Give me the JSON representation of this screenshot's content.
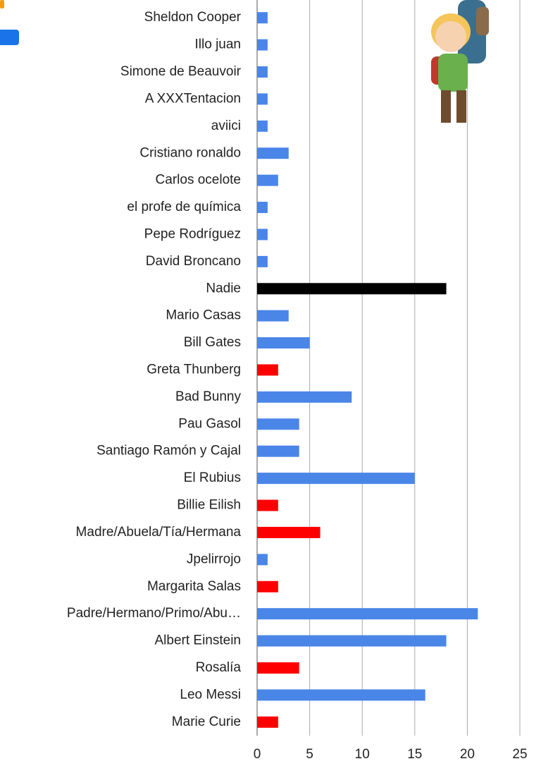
{
  "chart_data": {
    "type": "barh",
    "categories": [
      "Sheldon Cooper",
      "Illo juan",
      "Simone de Beauvoir",
      "A XXXTentacion",
      "aviici",
      "Cristiano ronaldo",
      "Carlos ocelote",
      "el profe de química",
      "Pepe Rodríguez",
      "David Broncano",
      "Nadie",
      "Mario Casas",
      "Bill Gates",
      "Greta Thunberg",
      "Bad Bunny",
      "Pau Gasol",
      "Santiago Ramón y Cajal",
      "El Rubius",
      "Billie Eilish",
      "Madre/Abuela/Tía/Hermana",
      "Jpelirrojo",
      "Margarita Salas",
      "Padre/Hermano/Primo/Abu…",
      "Albert Einstein",
      "Rosalía",
      "Leo Messi",
      "Marie Curie"
    ],
    "values": [
      1,
      1,
      1,
      1,
      1,
      3,
      2,
      1,
      1,
      1,
      18,
      3,
      5,
      2,
      9,
      4,
      4,
      15,
      2,
      6,
      1,
      2,
      21,
      18,
      4,
      16,
      2
    ],
    "colors": [
      "#4a86e8",
      "#4a86e8",
      "#4a86e8",
      "#4a86e8",
      "#4a86e8",
      "#4a86e8",
      "#4a86e8",
      "#4a86e8",
      "#4a86e8",
      "#4a86e8",
      "#000000",
      "#4a86e8",
      "#4a86e8",
      "#ff0000",
      "#4a86e8",
      "#4a86e8",
      "#4a86e8",
      "#4a86e8",
      "#ff0000",
      "#ff0000",
      "#4a86e8",
      "#ff0000",
      "#4a86e8",
      "#4a86e8",
      "#ff0000",
      "#4a86e8",
      "#ff0000"
    ],
    "xlim": [
      0,
      25
    ],
    "xticks": [
      0,
      5,
      10,
      15,
      20,
      25
    ],
    "grid": true
  }
}
